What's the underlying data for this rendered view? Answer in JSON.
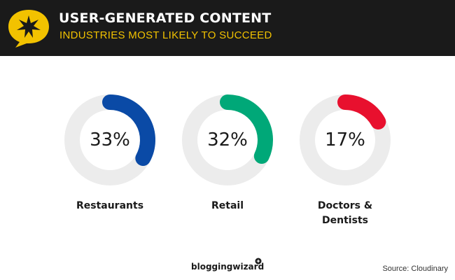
{
  "header": {
    "title": "USER-GENERATED CONTENT",
    "subtitle": "INDUSTRIES MOST LIKELY TO SUCCEED",
    "icon": "star-speech-bubble-icon"
  },
  "chart_data": {
    "type": "donut",
    "categories": [
      "Restaurants",
      "Retail",
      "Doctors & Dentists"
    ],
    "values": [
      33,
      32,
      17
    ],
    "value_labels": [
      "33%",
      "32%",
      "17%"
    ],
    "colors": [
      "#0a4aa6",
      "#00a878",
      "#e8102e"
    ],
    "track_color": "#ececec",
    "max": 100
  },
  "footer": {
    "logo_text": "bloggingwizard",
    "source": "Source: Cloudinary"
  },
  "colors": {
    "header_bg": "#1a1a1a",
    "accent": "#f2c200"
  }
}
